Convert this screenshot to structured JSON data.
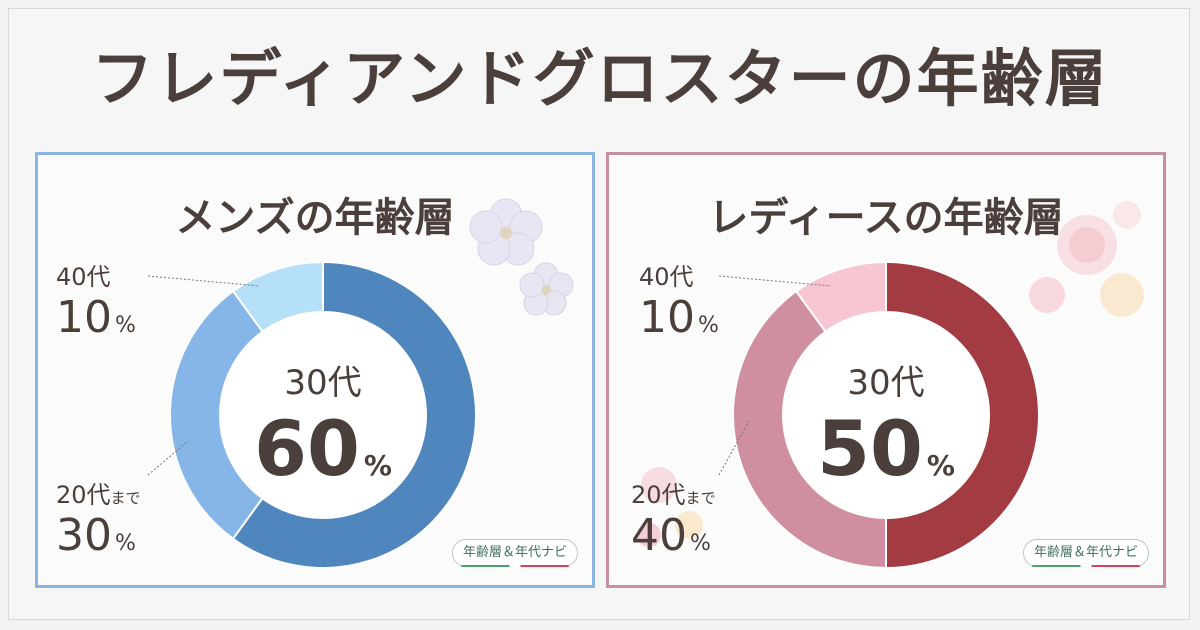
{
  "title": "フレディアンドグロスターの年齢層",
  "panels": {
    "men": {
      "title": "メンズの年齢層",
      "center": {
        "age": "30代",
        "value": "60",
        "unit": "%"
      },
      "labels": {
        "forties": {
          "age": "40代",
          "value": "10",
          "unit": "%"
        },
        "twenties": {
          "age": "20代",
          "suffix": "まで",
          "value": "30",
          "unit": "%"
        }
      },
      "badge": "年齢層＆年代ナビ"
    },
    "women": {
      "title": "レディースの年齢層",
      "center": {
        "age": "30代",
        "value": "50",
        "unit": "%"
      },
      "labels": {
        "forties": {
          "age": "40代",
          "value": "10",
          "unit": "%"
        },
        "twenties": {
          "age": "20代",
          "suffix": "まで",
          "value": "40",
          "unit": "%"
        }
      },
      "badge": "年齢層＆年代ナビ"
    }
  },
  "chart_data": [
    {
      "type": "pie",
      "title": "メンズの年齢層",
      "categories": [
        "30代",
        "20代まで",
        "40代"
      ],
      "values": [
        60,
        30,
        10
      ],
      "colors": [
        "#4f86bd",
        "#86b5e8",
        "#b6e0f8"
      ]
    },
    {
      "type": "pie",
      "title": "レディースの年齢層",
      "categories": [
        "30代",
        "20代まで",
        "40代"
      ],
      "values": [
        50,
        40,
        10
      ],
      "colors": [
        "#a33b43",
        "#d08fa0",
        "#f8c5d3"
      ]
    }
  ]
}
